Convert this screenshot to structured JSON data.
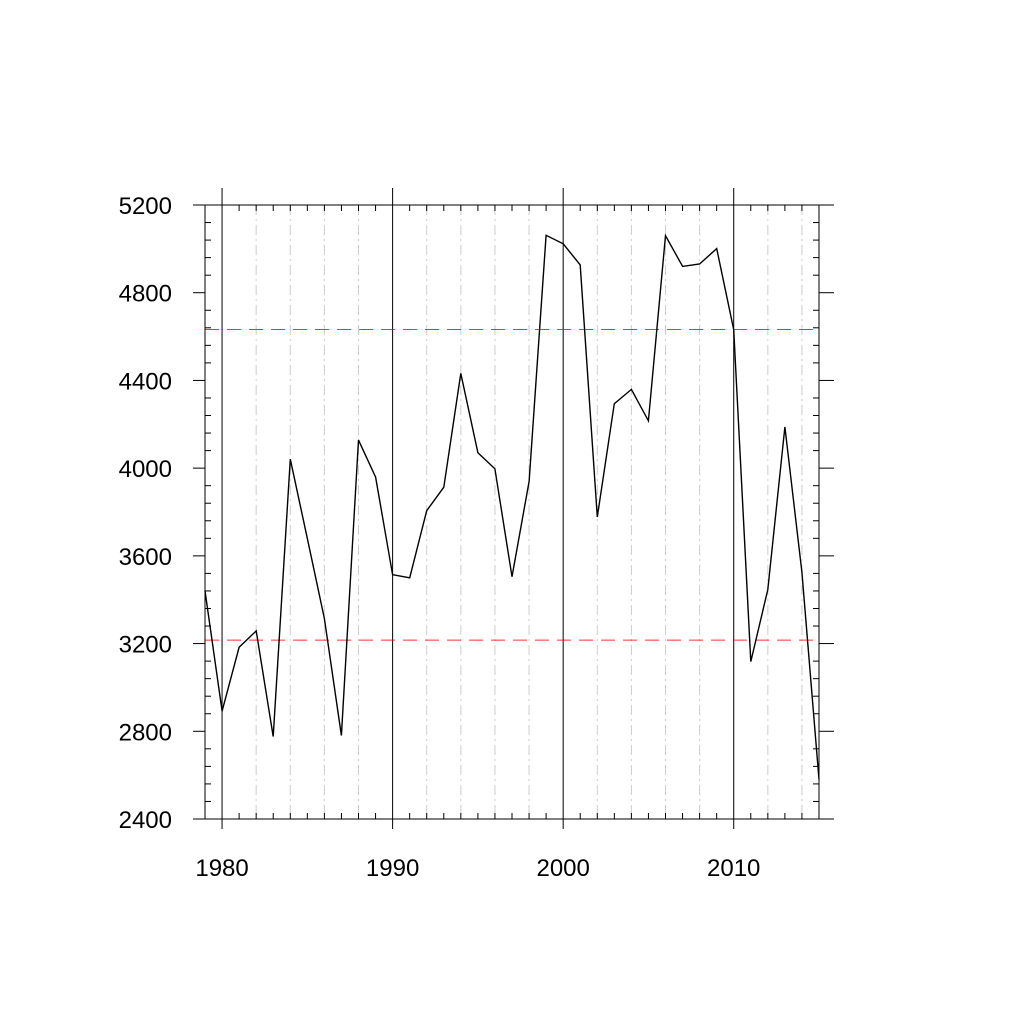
{
  "chart_data": {
    "type": "line",
    "title": "",
    "xlabel": "",
    "ylabel": "",
    "xlim": [
      1979,
      2015
    ],
    "ylim": [
      2400,
      5200
    ],
    "x_ticks": [
      1980,
      1990,
      2000,
      2010
    ],
    "x_tick_labels": [
      "1980",
      "1990",
      "2000",
      "2010"
    ],
    "y_ticks": [
      2400,
      2800,
      3200,
      3600,
      4000,
      4400,
      4800,
      5200
    ],
    "y_tick_labels": [
      "2400",
      "2800",
      "3200",
      "3600",
      "4000",
      "4400",
      "4800",
      "5200"
    ],
    "reference_lines": [
      {
        "y": 4632,
        "color": "#ff0000",
        "style": "dashed"
      },
      {
        "y": 3216,
        "color": "#ff0000",
        "style": "dashed"
      }
    ],
    "grid": {
      "major_x": "solid",
      "minor_x": "dash-dot",
      "color": "#cccccc"
    },
    "line_color": "#000000",
    "series": [
      {
        "x": [
          1979,
          1980,
          1981,
          1982,
          1983,
          1984,
          1985,
          1986,
          1987,
          1988,
          1989,
          1990,
          1991,
          1992,
          1993,
          1994,
          1995,
          1996,
          1997,
          1998,
          1999,
          2000,
          2001,
          2002,
          2003,
          2004,
          2005,
          2006,
          2007,
          2008,
          2009,
          2010,
          2011,
          2012,
          2013,
          2014,
          2015
        ],
        "values": [
          3440,
          2892,
          3183,
          3258,
          2776,
          4041,
          3680,
          3314,
          2781,
          4128,
          3959,
          3514,
          3500,
          3806,
          3913,
          4432,
          4070,
          3997,
          3505,
          3939,
          5062,
          5023,
          4927,
          3777,
          4294,
          4359,
          4216,
          5060,
          4920,
          4931,
          5001,
          4632,
          3118,
          3446,
          4188,
          3526,
          2580
        ]
      }
    ]
  }
}
